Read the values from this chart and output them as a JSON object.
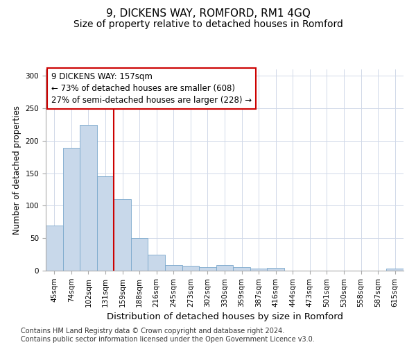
{
  "title": "9, DICKENS WAY, ROMFORD, RM1 4GQ",
  "subtitle": "Size of property relative to detached houses in Romford",
  "xlabel": "Distribution of detached houses by size in Romford",
  "ylabel": "Number of detached properties",
  "categories": [
    "45sqm",
    "74sqm",
    "102sqm",
    "131sqm",
    "159sqm",
    "188sqm",
    "216sqm",
    "245sqm",
    "273sqm",
    "302sqm",
    "330sqm",
    "359sqm",
    "387sqm",
    "416sqm",
    "444sqm",
    "473sqm",
    "501sqm",
    "530sqm",
    "558sqm",
    "587sqm",
    "615sqm"
  ],
  "values": [
    70,
    189,
    224,
    145,
    110,
    50,
    25,
    9,
    7,
    5,
    9,
    5,
    3,
    4,
    0,
    0,
    0,
    0,
    0,
    0,
    3
  ],
  "bar_color": "#c8d8ea",
  "bar_edge_color": "#7aa8cc",
  "vline_color": "#cc0000",
  "vline_x_index": 4,
  "annotation_line1": "9 DICKENS WAY: 157sqm",
  "annotation_line2": "← 73% of detached houses are smaller (608)",
  "annotation_line3": "27% of semi-detached houses are larger (228) →",
  "annotation_box_facecolor": "#ffffff",
  "annotation_box_edgecolor": "#cc0000",
  "ylim": [
    0,
    310
  ],
  "yticks": [
    0,
    50,
    100,
    150,
    200,
    250,
    300
  ],
  "grid_color": "#d0d8e8",
  "footnote1": "Contains HM Land Registry data © Crown copyright and database right 2024.",
  "footnote2": "Contains public sector information licensed under the Open Government Licence v3.0.",
  "title_fontsize": 11,
  "subtitle_fontsize": 10,
  "xlabel_fontsize": 9.5,
  "ylabel_fontsize": 8.5,
  "tick_fontsize": 7.5,
  "annotation_fontsize": 8.5,
  "footnote_fontsize": 7
}
